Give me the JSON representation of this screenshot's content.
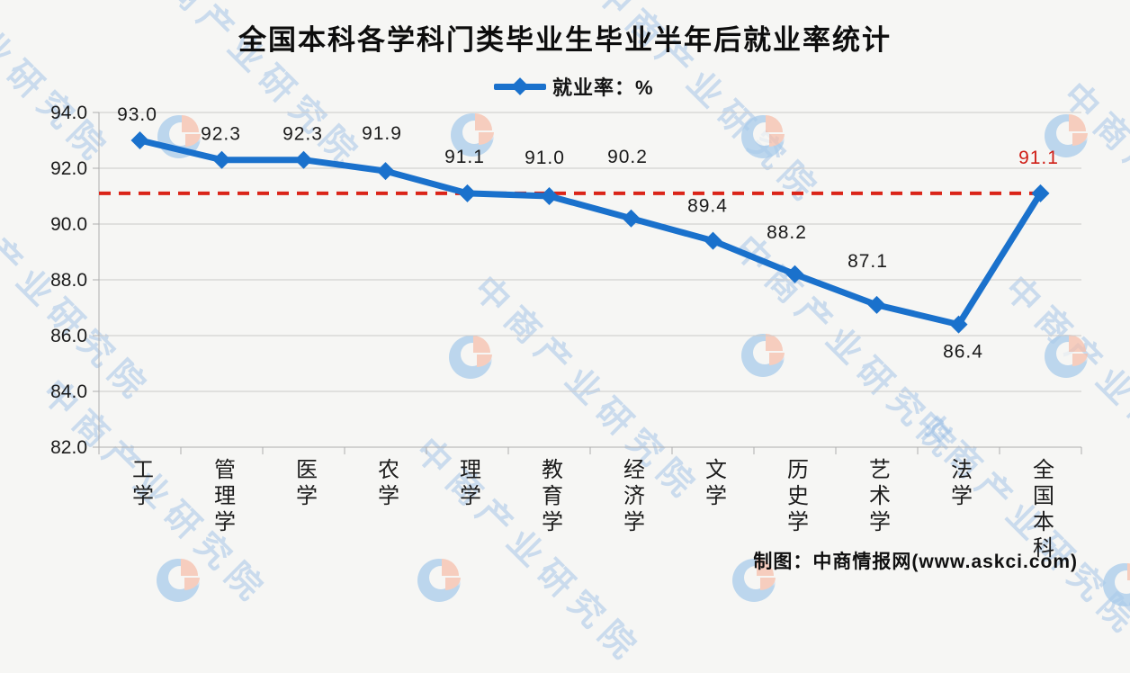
{
  "title": "全国本科各学科门类毕业生毕业半年后就业率统计",
  "legend": {
    "label": "就业率：%"
  },
  "credit": "制图：中商情报网(www.askci.com)",
  "watermark": {
    "text": "中商产业研究院",
    "logo": "askci-pie-logo"
  },
  "colors": {
    "line": "#1a71cc",
    "marker": "#1a71cc",
    "reference_line": "#da2418",
    "data_label": "#1a1a1a",
    "last_data_label": "#cf1e16",
    "grid": "#c9c9c9",
    "axis": "#aeaeae",
    "background": "#f6f6f4",
    "watermark_text": "rgba(125,172,224,0.42)",
    "watermark_blue": "#a9cceb",
    "watermark_salmon": "#f6c0ac"
  },
  "chart_data": {
    "type": "line",
    "title": "全国本科各学科门类毕业生毕业半年后就业率统计",
    "legend_entries": [
      "就业率：%"
    ],
    "legend_position": "top",
    "categories": [
      "工学",
      "管理学",
      "医学",
      "农学",
      "理学",
      "教育学",
      "经济学",
      "文学",
      "历史学",
      "艺术学",
      "法学",
      "全国本科"
    ],
    "series": [
      {
        "name": "就业率：%",
        "values": [
          93.0,
          92.3,
          92.3,
          91.9,
          91.1,
          91.0,
          90.2,
          89.4,
          88.2,
          87.1,
          86.4,
          91.1
        ]
      }
    ],
    "data_labels": [
      "93.0",
      "92.3",
      "92.3",
      "91.9",
      "91.1",
      "91.0",
      "90.2",
      "89.4",
      "88.2",
      "87.1",
      "86.4",
      "91.1"
    ],
    "ylim": [
      82.0,
      94.0
    ],
    "ytick_step": 2.0,
    "ytick_labels": [
      "82.0",
      "84.0",
      "86.0",
      "88.0",
      "90.0",
      "92.0",
      "94.0"
    ],
    "grid": true,
    "marker": "diamond",
    "reference_line": {
      "value": 91.1,
      "style": "dashed",
      "label_color": "#cf1e16"
    },
    "xlabel": "",
    "ylabel": ""
  }
}
